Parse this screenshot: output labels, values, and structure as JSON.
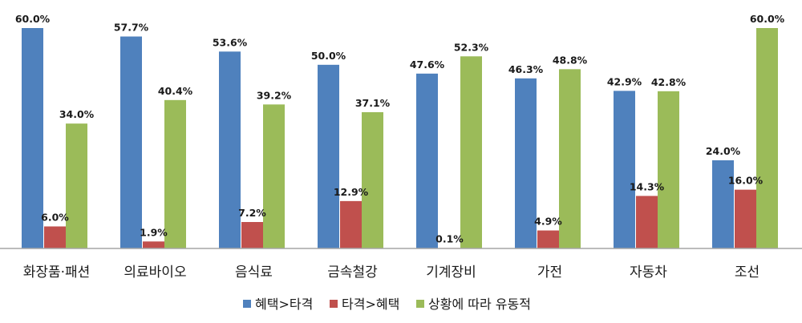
{
  "chart_data": {
    "type": "bar",
    "categories": [
      "화장품·패션",
      "의료바이오",
      "음식료",
      "금속철강",
      "기계장비",
      "가전",
      "자동차",
      "조선"
    ],
    "series": [
      {
        "name": "혜택>타격",
        "color": "#4F81BD",
        "values": [
          60.0,
          57.7,
          53.6,
          50.0,
          47.6,
          46.3,
          42.9,
          24.0
        ],
        "labels": [
          "60.0%",
          "57.7%",
          "53.6%",
          "50.0%",
          "47.6%",
          "46.3%",
          "42.9%",
          "24.0%"
        ]
      },
      {
        "name": "타격>혜택",
        "color": "#C0504D",
        "values": [
          6.0,
          1.9,
          7.2,
          12.9,
          0.1,
          4.9,
          14.3,
          16.0
        ],
        "labels": [
          "6.0%",
          "1.9%",
          "7.2%",
          "12.9%",
          "0.1%",
          "4.9%",
          "14.3%",
          "16.0%"
        ]
      },
      {
        "name": "상황에 따라 유동적",
        "color": "#9BBB59",
        "values": [
          34.0,
          40.4,
          39.2,
          37.1,
          52.3,
          48.8,
          42.8,
          60.0
        ],
        "labels": [
          "34.0%",
          "40.4%",
          "39.2%",
          "37.1%",
          "52.3%",
          "48.8%",
          "42.8%",
          "60.0%"
        ]
      }
    ],
    "ylim": [
      0,
      60
    ],
    "grid": false,
    "legend": "bottom"
  }
}
